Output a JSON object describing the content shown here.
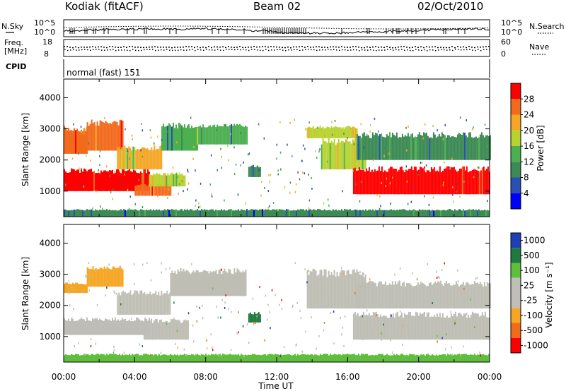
{
  "header": {
    "station": "Kodiak (fitACF)",
    "beam": "Beam 02",
    "date": "02/Oct/2010"
  },
  "side_labels": {
    "nsky": "N.Sky",
    "nsearch": "N.Search",
    "freq": "Freq.",
    "freq_unit": "[MHz]",
    "nave": "Nave",
    "cpid": "CPID",
    "cpid_value": "normal (fast) 151"
  },
  "noise_axis": {
    "left_top": "10^5",
    "left_bottom": "10^0",
    "right_top": "10^5",
    "right_bottom": "10^0"
  },
  "freq_axis": {
    "left_top": "18",
    "left_bottom": "8",
    "right_top": "60",
    "right_bottom": "0"
  },
  "colors": {
    "power_scale": [
      "#0000ff",
      "#2a4fb5",
      "#3c8a54",
      "#4caf50",
      "#b8d230",
      "#f5a623",
      "#f26b1d",
      "#ff0000"
    ],
    "velocity_scale": [
      "#1f3fb8",
      "#1e7a3e",
      "#5fbf3c",
      "#bfbfb8",
      "#bfbfb8",
      "#f5a623",
      "#f26b1d",
      "#ff0000"
    ],
    "ground_scatter": "#bebeb4"
  },
  "chart_data": [
    {
      "type": "heatmap",
      "name": "power",
      "title": "",
      "xlabel": "Time UT",
      "ylabel": "Slant Range [km]",
      "x_ticks": [
        "00:00",
        "04:00",
        "08:00",
        "12:00",
        "16:00",
        "20:00",
        "00:00"
      ],
      "xlim_hours": [
        0,
        24
      ],
      "y_ticks": [
        1000,
        2000,
        3000,
        4000
      ],
      "ylim_km": [
        180,
        4600
      ],
      "colorbar_label": "Power [dB]",
      "colorbar_ticks": [
        4,
        8,
        12,
        16,
        20,
        24,
        28
      ],
      "colorbar_range": [
        0,
        32
      ],
      "regions": [
        {
          "t0": 0.0,
          "t1": 1.3,
          "r0": 2200,
          "r1": 3000,
          "value": 26
        },
        {
          "t0": 1.3,
          "t1": 3.3,
          "r0": 2300,
          "r1": 3200,
          "value": 24
        },
        {
          "t0": 0.0,
          "t1": 4.8,
          "r0": 1000,
          "r1": 1650,
          "value": 30
        },
        {
          "t0": 3.0,
          "t1": 5.5,
          "r0": 1700,
          "r1": 2400,
          "value": 20
        },
        {
          "t0": 4.0,
          "t1": 6.0,
          "r0": 850,
          "r1": 1200,
          "value": 26
        },
        {
          "t0": 4.8,
          "t1": 6.8,
          "r0": 1150,
          "r1": 1550,
          "value": 18
        },
        {
          "t0": 5.5,
          "t1": 7.5,
          "r0": 2300,
          "r1": 3100,
          "value": 12
        },
        {
          "t0": 7.5,
          "t1": 10.3,
          "r0": 2500,
          "r1": 3100,
          "value": 12
        },
        {
          "t0": 10.4,
          "t1": 11.1,
          "r0": 1450,
          "r1": 1800,
          "value": 10
        },
        {
          "t0": 13.7,
          "t1": 16.5,
          "r0": 2700,
          "r1": 3050,
          "value": 18
        },
        {
          "t0": 14.5,
          "t1": 17.0,
          "r0": 1700,
          "r1": 2600,
          "value": 18
        },
        {
          "t0": 16.3,
          "t1": 24.0,
          "r0": 900,
          "r1": 1700,
          "value": 30
        },
        {
          "t0": 16.5,
          "t1": 24.0,
          "r0": 2000,
          "r1": 2800,
          "value": 10
        },
        {
          "t0": 0.0,
          "t1": 24.0,
          "r0": 180,
          "r1": 400,
          "value": 8
        }
      ]
    },
    {
      "type": "heatmap",
      "name": "velocity",
      "title": "",
      "xlabel": "Time UT",
      "ylabel": "Slant Range [km]",
      "x_ticks": [
        "00:00",
        "04:00",
        "08:00",
        "12:00",
        "16:00",
        "20:00",
        "00:00"
      ],
      "xlim_hours": [
        0,
        24
      ],
      "y_ticks": [
        1000,
        2000,
        3000,
        4000
      ],
      "ylim_km": [
        180,
        4600
      ],
      "colorbar_label": "Velocity [m s⁻¹]",
      "colorbar_ticks": [
        "1000",
        "500",
        "100",
        "25",
        "-25",
        "-100",
        "-500",
        "-1000"
      ],
      "regions": [
        {
          "t0": 0.0,
          "t1": 1.3,
          "r0": 2400,
          "r1": 2700,
          "value": "-100"
        },
        {
          "t0": 1.3,
          "t1": 3.3,
          "r0": 2600,
          "r1": 3200,
          "value": "-100"
        },
        {
          "t0": 0.0,
          "t1": 4.8,
          "r0": 1050,
          "r1": 1550,
          "value": "ground"
        },
        {
          "t0": 3.0,
          "t1": 6.0,
          "r0": 1700,
          "r1": 2400,
          "value": "ground"
        },
        {
          "t0": 4.5,
          "t1": 7.0,
          "r0": 900,
          "r1": 1500,
          "value": "ground"
        },
        {
          "t0": 6.0,
          "t1": 10.3,
          "r0": 2300,
          "r1": 3100,
          "value": "ground"
        },
        {
          "t0": 10.4,
          "t1": 11.1,
          "r0": 1450,
          "r1": 1750,
          "value": "500"
        },
        {
          "t0": 13.7,
          "t1": 17.0,
          "r0": 1900,
          "r1": 3050,
          "value": "ground"
        },
        {
          "t0": 16.3,
          "t1": 24.0,
          "r0": 900,
          "r1": 1700,
          "value": "ground"
        },
        {
          "t0": 16.5,
          "t1": 24.0,
          "r0": 1900,
          "r1": 2700,
          "value": "ground"
        },
        {
          "t0": 0.0,
          "t1": 24.0,
          "r0": 180,
          "r1": 420,
          "value": "100"
        }
      ]
    }
  ]
}
